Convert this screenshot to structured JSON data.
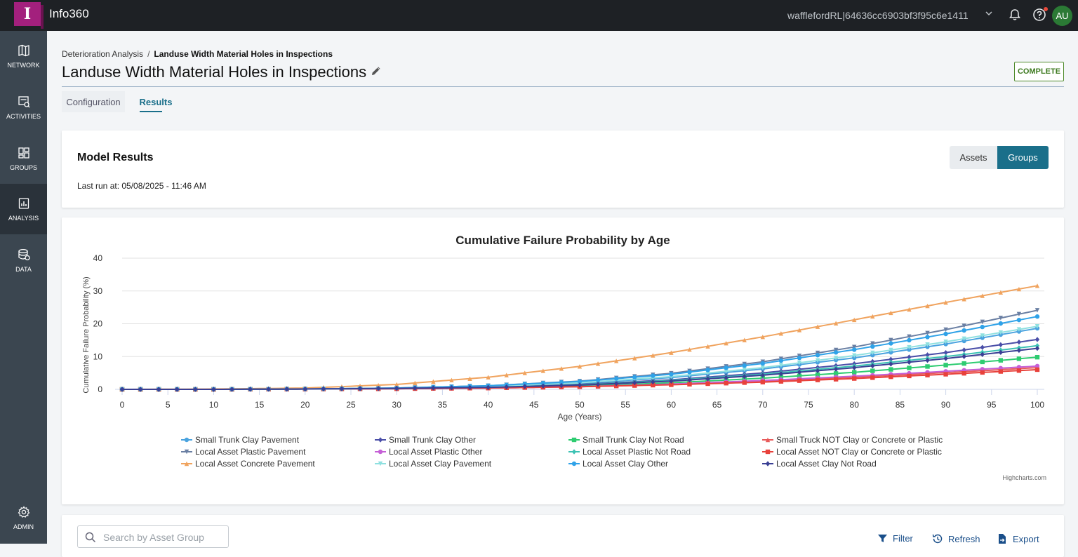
{
  "app": {
    "name": "Info360",
    "logo_letter": "I",
    "tenant": "wafflefordRL|64636cc6903bf3f95c6e1411",
    "avatar_initials": "AU"
  },
  "sidebar": {
    "items": [
      {
        "label": "NETWORK",
        "icon": "map-icon"
      },
      {
        "label": "ACTIVITIES",
        "icon": "activities-icon"
      },
      {
        "label": "GROUPS",
        "icon": "groups-icon"
      },
      {
        "label": "ANALYSIS",
        "icon": "analysis-icon",
        "active": true
      },
      {
        "label": "DATA",
        "icon": "database-icon"
      },
      {
        "label": "ADMIN",
        "icon": "gear-icon"
      }
    ]
  },
  "breadcrumb": {
    "parent": "Deterioration Analysis",
    "separator": "/",
    "current": "Landuse Width Material Holes in Inspections"
  },
  "page": {
    "title": "Landuse Width Material Holes in Inspections",
    "status": "COMPLETE"
  },
  "tabs": {
    "configuration": "Configuration",
    "results": "Results"
  },
  "model_results": {
    "title": "Model Results",
    "last_run": "Last run at: 05/08/2025 - 11:46 AM",
    "toggle_assets": "Assets",
    "toggle_groups": "Groups"
  },
  "chart_data": {
    "type": "line",
    "title": "Cumulative Failure Probability by Age",
    "xlabel": "Age (Years)",
    "ylabel": "Cumulative Failure Probability (%)",
    "xlim": [
      0,
      100
    ],
    "ylim": [
      0,
      40
    ],
    "x_ticks": [
      0,
      5,
      10,
      15,
      20,
      25,
      30,
      35,
      40,
      45,
      50,
      55,
      60,
      65,
      70,
      75,
      80,
      85,
      90,
      95,
      100
    ],
    "y_ticks": [
      0,
      10,
      20,
      30,
      40
    ],
    "grid": true,
    "legend_position": "bottom",
    "credits": "Highcharts.com",
    "x": [
      0,
      10,
      20,
      30,
      40,
      50,
      60,
      70,
      80,
      90,
      100
    ],
    "series": [
      {
        "name": "Small Trunk Clay Pavement",
        "color": "#4aa3df",
        "marker": "circle",
        "values": [
          0,
          0,
          0.1,
          0.3,
          0.8,
          1.8,
          3.6,
          6.2,
          9.6,
          13.8,
          18.6
        ]
      },
      {
        "name": "Small Trunk Clay Other",
        "color": "#4a4ea8",
        "marker": "diamond",
        "values": [
          0,
          0,
          0.1,
          0.3,
          0.7,
          1.5,
          2.9,
          5.0,
          7.8,
          11.2,
          15.2
        ]
      },
      {
        "name": "Small Trunk Clay Not Road",
        "color": "#2ecc71",
        "marker": "square",
        "values": [
          0,
          0,
          0.1,
          0.2,
          0.5,
          1.0,
          2.0,
          3.4,
          5.2,
          7.4,
          9.8
        ]
      },
      {
        "name": "Small Truck NOT Clay or Concrete or Plastic",
        "color": "#e85a5a",
        "marker": "triangle",
        "values": [
          0,
          0,
          0.1,
          0.2,
          0.4,
          0.8,
          1.5,
          2.5,
          3.7,
          5.1,
          6.6
        ]
      },
      {
        "name": "Local Asset Plastic Pavement",
        "color": "#6a7fa3",
        "marker": "triangle-down",
        "values": [
          0,
          0,
          0.1,
          0.4,
          1.1,
          2.5,
          4.9,
          8.4,
          12.9,
          18.2,
          24.1
        ]
      },
      {
        "name": "Local Asset Plastic Other",
        "color": "#c55fd6",
        "marker": "circle",
        "values": [
          0,
          0,
          0.1,
          0.2,
          0.4,
          0.8,
          1.6,
          2.7,
          4.0,
          5.5,
          7.1
        ]
      },
      {
        "name": "Local Asset Plastic Not Road",
        "color": "#3cc2b4",
        "marker": "diamond",
        "values": [
          0,
          0,
          0.1,
          0.3,
          0.6,
          1.4,
          2.7,
          4.6,
          7.1,
          10.0,
          13.3
        ]
      },
      {
        "name": "Local Asset NOT Clay or Concrete or Plastic",
        "color": "#e8413b",
        "marker": "square",
        "values": [
          0,
          0,
          0.1,
          0.2,
          0.4,
          0.8,
          1.4,
          2.2,
          3.3,
          4.6,
          6.0
        ]
      },
      {
        "name": "Local Asset Concrete Pavement",
        "color": "#f0a35e",
        "marker": "triangle",
        "values": [
          0,
          0.1,
          0.4,
          1.5,
          3.7,
          7.0,
          11.2,
          16.0,
          21.2,
          26.5,
          31.6
        ]
      },
      {
        "name": "Local Asset Clay Pavement",
        "color": "#8fe0e0",
        "marker": "triangle-down",
        "values": [
          0,
          0,
          0.1,
          0.3,
          0.9,
          2.0,
          3.9,
          6.6,
          10.3,
          14.5,
          19.2
        ]
      },
      {
        "name": "Local Asset Clay Other",
        "color": "#2fa2e8",
        "marker": "circle",
        "values": [
          0,
          0,
          0.1,
          0.4,
          1.1,
          2.4,
          4.6,
          7.9,
          12.1,
          16.9,
          22.2
        ]
      },
      {
        "name": "Local Asset Clay Not Road",
        "color": "#3a3f94",
        "marker": "diamond",
        "values": [
          0,
          0,
          0.1,
          0.3,
          0.6,
          1.3,
          2.5,
          4.3,
          6.6,
          9.4,
          12.5
        ]
      }
    ]
  },
  "table_toolbar": {
    "search_placeholder": "Search by Asset Group",
    "filter": "Filter",
    "refresh": "Refresh",
    "export": "Export"
  }
}
